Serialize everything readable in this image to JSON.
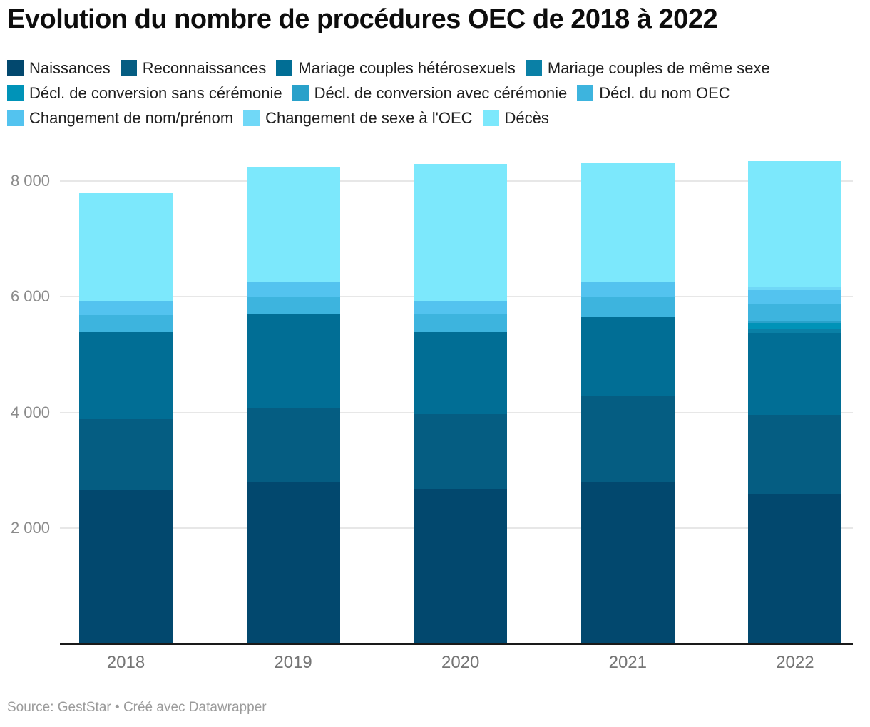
{
  "title": "Evolution du nombre de procédures OEC de 2018 à 2022",
  "footer": "Source: GestStar • Créé avec Datawrapper",
  "chart_data": {
    "type": "bar",
    "stacked": true,
    "title": "Evolution du nombre de procédures OEC de 2018 à 2022",
    "categories": [
      "2018",
      "2019",
      "2020",
      "2021",
      "2022"
    ],
    "series": [
      {
        "name": "Naissances",
        "color": "#02486e",
        "values": [
          2660,
          2800,
          2680,
          2800,
          2590
        ]
      },
      {
        "name": "Reconnaissances",
        "color": "#055d82",
        "values": [
          1220,
          1285,
          1290,
          1490,
          1370
        ]
      },
      {
        "name": "Mariage couples hétérosexuels",
        "color": "#016e95",
        "values": [
          1500,
          1610,
          1415,
          1355,
          1410
        ]
      },
      {
        "name": "Mariage couples de même sexe",
        "color": "#0a80a6",
        "values": [
          0,
          0,
          0,
          0,
          80
        ]
      },
      {
        "name": "Décl. de conversion sans cérémonie",
        "color": "#0093b8",
        "values": [
          0,
          0,
          0,
          0,
          95
        ]
      },
      {
        "name": "Décl. de conversion avec cérémonie",
        "color": "#29a1ca",
        "values": [
          0,
          0,
          0,
          0,
          25
        ]
      },
      {
        "name": "Décl. du nom OEC",
        "color": "#3db4de",
        "values": [
          305,
          300,
          310,
          350,
          305
        ]
      },
      {
        "name": "Changement de nom/prénom",
        "color": "#53c3ef",
        "values": [
          235,
          255,
          220,
          255,
          240
        ]
      },
      {
        "name": "Changement de sexe à l'OEC",
        "color": "#70d8f7",
        "values": [
          0,
          0,
          0,
          0,
          40
        ]
      },
      {
        "name": "Décès",
        "color": "#7ce8fc",
        "values": [
          1860,
          1990,
          2375,
          2060,
          2185
        ]
      }
    ],
    "totals": [
      7780,
      8240,
      8290,
      8310,
      8340
    ],
    "ylim": [
      0,
      8400
    ],
    "yticks": [
      {
        "value": 8000,
        "label": "8 000"
      },
      {
        "value": 6000,
        "label": "6 000"
      },
      {
        "value": 4000,
        "label": "4 000"
      },
      {
        "value": 2000,
        "label": "2 000"
      }
    ],
    "grid": "horizontal",
    "legend_position": "top"
  }
}
